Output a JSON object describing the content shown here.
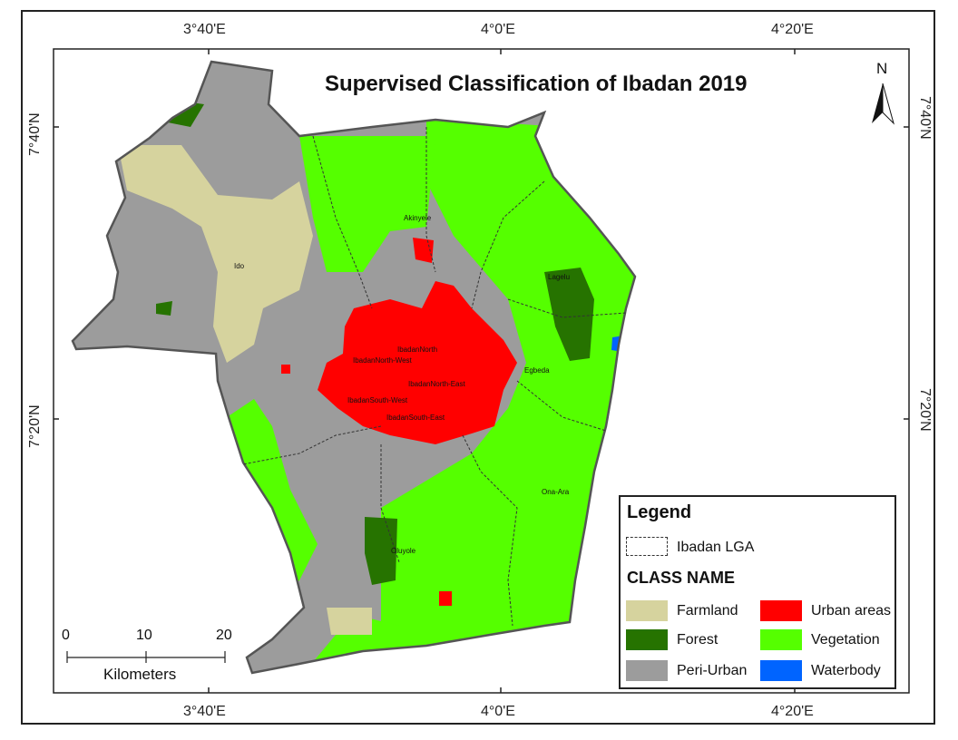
{
  "title": "Supervised Classification of Ibadan 2019",
  "north_arrow": {
    "label": "N",
    "icon": "north-arrow-icon"
  },
  "graticule": {
    "top": [
      "3°40'E",
      "4°0'E",
      "4°20'E"
    ],
    "bottom": [
      "3°40'E",
      "4°0'E",
      "4°20'E"
    ],
    "left": [
      "7°40'N",
      "7°20'N"
    ],
    "right": [
      "7°40'N",
      "7°20'N"
    ]
  },
  "places": [
    "Akinyele",
    "Ido",
    "Lagelu",
    "IbadanNorth",
    "IbadanNorth-West",
    "Egbeda",
    "IbadanNorth-East",
    "IbadanSouth-West",
    "IbadanSouth-East",
    "Ona-Ara",
    "Oluyole"
  ],
  "legend": {
    "title": "Legend",
    "lga_label": "Ibadan LGA",
    "class_title": "CLASS NAME",
    "classes": [
      {
        "name": "Farmland",
        "color": "#d6d39e"
      },
      {
        "name": "Urban areas",
        "color": "#ff0000"
      },
      {
        "name": "Forest",
        "color": "#267300"
      },
      {
        "name": "Vegetation",
        "color": "#55ff00"
      },
      {
        "name": "Peri-Urban",
        "color": "#9c9c9c"
      },
      {
        "name": "Waterbody",
        "color": "#0064ff"
      }
    ]
  },
  "scale_bar": {
    "ticks": [
      "0",
      "10",
      "20"
    ],
    "unit": "Kilometers"
  },
  "colors": {
    "frame": "#222222",
    "boundary": "#555555"
  }
}
